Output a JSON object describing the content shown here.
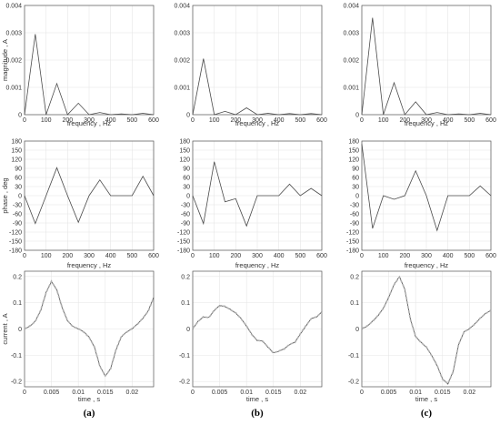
{
  "panel_labels": [
    "(a)",
    "(b)",
    "(c)"
  ],
  "chart_data": [
    {
      "type": "line",
      "panel": "(a)",
      "row": "magnitude",
      "xlabel": "frequency , Hz",
      "ylabel": "magnitude , A",
      "xlim": [
        0,
        600
      ],
      "ylim": [
        0,
        0.004
      ],
      "xticks": [
        0,
        100,
        200,
        300,
        400,
        500,
        600
      ],
      "yticks": [
        0,
        0.001,
        0.002,
        0.003,
        0.004
      ],
      "ytick_labels": [
        "0",
        "0.001",
        "0.002",
        "0.003",
        "0.004"
      ],
      "grid": true,
      "x": [
        0,
        50,
        100,
        150,
        200,
        250,
        300,
        350,
        400,
        450,
        500,
        550,
        600
      ],
      "series": [
        {
          "values": [
            0.0,
            0.00295,
            0.0,
            0.00114,
            0.0,
            0.00042,
            0.0,
            8e-05,
            0.0,
            3e-05,
            0.0,
            5e-05,
            0.0
          ]
        }
      ]
    },
    {
      "type": "line",
      "panel": "(b)",
      "row": "magnitude",
      "xlabel": "frequency , Hz",
      "ylabel": "",
      "xlim": [
        0,
        600
      ],
      "ylim": [
        0,
        0.004
      ],
      "xticks": [
        0,
        100,
        200,
        300,
        400,
        500,
        600
      ],
      "yticks": [
        0,
        0.001,
        0.002,
        0.003,
        0.004
      ],
      "ytick_labels": [
        "0",
        "0.001",
        "0.002",
        "0.003",
        "0.004"
      ],
      "grid": true,
      "x": [
        0,
        50,
        100,
        150,
        200,
        250,
        300,
        350,
        400,
        450,
        500,
        550,
        600
      ],
      "series": [
        {
          "values": [
            0.0,
            0.00205,
            0.0,
            0.00012,
            0.0,
            0.00025,
            0.0,
            5e-05,
            0.0,
            4e-05,
            0.0,
            4e-05,
            0.0
          ]
        }
      ]
    },
    {
      "type": "line",
      "panel": "(c)",
      "row": "magnitude",
      "xlabel": "frequency , Hz",
      "ylabel": "",
      "xlim": [
        0,
        600
      ],
      "ylim": [
        0,
        0.004
      ],
      "xticks": [
        0,
        100,
        200,
        300,
        400,
        500,
        600
      ],
      "yticks": [
        0,
        0.001,
        0.002,
        0.003,
        0.004
      ],
      "ytick_labels": [
        "0",
        "0.001",
        "0.002",
        "0.003",
        "0.004"
      ],
      "grid": true,
      "x": [
        0,
        50,
        100,
        150,
        200,
        250,
        300,
        350,
        400,
        450,
        500,
        550,
        600
      ],
      "series": [
        {
          "values": [
            0.0,
            0.00355,
            0.0,
            0.00117,
            0.0,
            0.00047,
            0.0,
            8e-05,
            0.0,
            3e-05,
            0.0,
            5e-05,
            0.0
          ]
        }
      ]
    },
    {
      "type": "line",
      "panel": "(a)",
      "row": "phase",
      "xlabel": "frequency , Hz",
      "ylabel": "phase , deg",
      "xlim": [
        0,
        600
      ],
      "ylim": [
        -180,
        180
      ],
      "xticks": [
        0,
        100,
        200,
        300,
        400,
        500,
        600
      ],
      "yticks": [
        -180,
        -150,
        -120,
        -90,
        -60,
        -30,
        0,
        30,
        60,
        90,
        120,
        150,
        180
      ],
      "ytick_labels": [
        "-180",
        "-150",
        "-120",
        "-90",
        "-60",
        "-30",
        "0",
        "30",
        "60",
        "90",
        "120",
        "150",
        "180"
      ],
      "grid": true,
      "x": [
        0,
        50,
        100,
        150,
        200,
        250,
        300,
        350,
        400,
        450,
        500,
        550,
        600
      ],
      "series": [
        {
          "values": [
            0,
            -92,
            0,
            92,
            0,
            -88,
            0,
            52,
            0,
            0,
            0,
            64,
            0
          ]
        }
      ]
    },
    {
      "type": "line",
      "panel": "(b)",
      "row": "phase",
      "xlabel": "frequency , Hz",
      "ylabel": "",
      "xlim": [
        0,
        600
      ],
      "ylim": [
        -180,
        180
      ],
      "xticks": [
        0,
        100,
        200,
        300,
        400,
        500,
        600
      ],
      "yticks": [
        -180,
        -150,
        -120,
        -90,
        -60,
        -30,
        0,
        30,
        60,
        90,
        120,
        150,
        180
      ],
      "ytick_labels": [
        "-180",
        "-150",
        "-120",
        "-90",
        "-60",
        "-30",
        "0",
        "30",
        "60",
        "90",
        "120",
        "150",
        "180"
      ],
      "grid": true,
      "x": [
        0,
        50,
        100,
        150,
        200,
        250,
        300,
        350,
        400,
        450,
        500,
        550,
        600
      ],
      "series": [
        {
          "values": [
            0,
            -92,
            112,
            -20,
            -10,
            -100,
            0,
            0,
            0,
            38,
            0,
            24,
            0
          ]
        }
      ]
    },
    {
      "type": "line",
      "panel": "(c)",
      "row": "phase",
      "xlabel": "frequency , Hz",
      "ylabel": "",
      "xlim": [
        0,
        600
      ],
      "ylim": [
        -180,
        180
      ],
      "xticks": [
        0,
        100,
        200,
        300,
        400,
        500,
        600
      ],
      "yticks": [
        -180,
        -150,
        -120,
        -90,
        -60,
        -30,
        0,
        30,
        60,
        90,
        120,
        150,
        180
      ],
      "ytick_labels": [
        "-180",
        "-150",
        "-120",
        "-90",
        "-60",
        "-30",
        "0",
        "30",
        "60",
        "90",
        "120",
        "150",
        "180"
      ],
      "grid": true,
      "x": [
        0,
        50,
        100,
        150,
        200,
        250,
        300,
        350,
        400,
        450,
        500,
        550,
        600
      ],
      "series": [
        {
          "values": [
            170,
            -108,
            0,
            -12,
            0,
            82,
            0,
            -115,
            0,
            0,
            0,
            32,
            0
          ]
        }
      ]
    },
    {
      "type": "line",
      "panel": "(a)",
      "row": "current",
      "xlabel": "time , s",
      "ylabel": "current , A",
      "xlim": [
        0,
        0.024
      ],
      "ylim": [
        -0.22,
        0.22
      ],
      "xticks": [
        0,
        0.005,
        0.01,
        0.015,
        0.02
      ],
      "xtick_labels": [
        "0",
        "0.005",
        "0.01",
        "0.015",
        "0.02"
      ],
      "yticks": [
        -0.2,
        -0.1,
        0,
        0.1,
        0.2
      ],
      "ytick_labels": [
        "-0.2",
        "-0.1",
        "0",
        "0.1",
        "0.2"
      ],
      "grid": true,
      "x": [
        0,
        0.001,
        0.002,
        0.003,
        0.004,
        0.005,
        0.006,
        0.007,
        0.008,
        0.009,
        0.01,
        0.011,
        0.012,
        0.013,
        0.014,
        0.015,
        0.016,
        0.017,
        0.018,
        0.019,
        0.02,
        0.021,
        0.022,
        0.023,
        0.024
      ],
      "series": [
        {
          "style": "solid",
          "values": [
            0,
            0.01,
            0.03,
            0.07,
            0.14,
            0.18,
            0.15,
            0.08,
            0.03,
            0.01,
            0,
            -0.01,
            -0.03,
            -0.07,
            -0.14,
            -0.18,
            -0.15,
            -0.08,
            -0.03,
            -0.01,
            0,
            0.02,
            0.04,
            0.07,
            0.12
          ]
        },
        {
          "style": "dashed",
          "values": [
            0,
            0.012,
            0.028,
            0.072,
            0.138,
            0.182,
            0.148,
            0.082,
            0.032,
            0.008,
            0.002,
            -0.012,
            -0.032,
            -0.068,
            -0.142,
            -0.178,
            -0.152,
            -0.078,
            -0.028,
            -0.012,
            0.002,
            0.018,
            0.042,
            0.068,
            0.118
          ]
        }
      ]
    },
    {
      "type": "line",
      "panel": "(b)",
      "row": "current",
      "xlabel": "time , s",
      "ylabel": "",
      "xlim": [
        0,
        0.024
      ],
      "ylim": [
        -0.22,
        0.22
      ],
      "xticks": [
        0,
        0.005,
        0.01,
        0.015,
        0.02
      ],
      "xtick_labels": [
        "0",
        "0.005",
        "0.01",
        "0.015",
        "0.02"
      ],
      "yticks": [
        -0.2,
        -0.1,
        0,
        0.1,
        0.2
      ],
      "ytick_labels": [
        "-0.2",
        "-0.1",
        "0",
        "0.1",
        "0.2"
      ],
      "grid": true,
      "x": [
        0,
        0.001,
        0.002,
        0.003,
        0.004,
        0.005,
        0.006,
        0.007,
        0.008,
        0.009,
        0.01,
        0.011,
        0.012,
        0.013,
        0.014,
        0.015,
        0.016,
        0.017,
        0.018,
        0.019,
        0.02,
        0.021,
        0.022,
        0.023,
        0.024
      ],
      "series": [
        {
          "style": "solid",
          "values": [
            0,
            0.03,
            0.045,
            0.045,
            0.07,
            0.09,
            0.085,
            0.075,
            0.06,
            0.04,
            0.01,
            -0.02,
            -0.045,
            -0.045,
            -0.07,
            -0.09,
            -0.085,
            -0.075,
            -0.06,
            -0.05,
            -0.02,
            0.01,
            0.04,
            0.045,
            0.065
          ]
        },
        {
          "style": "dashed",
          "values": [
            0.002,
            0.028,
            0.047,
            0.043,
            0.072,
            0.088,
            0.087,
            0.073,
            0.062,
            0.038,
            0.012,
            -0.022,
            -0.043,
            -0.047,
            -0.068,
            -0.092,
            -0.083,
            -0.077,
            -0.058,
            -0.052,
            -0.018,
            0.012,
            0.038,
            0.047,
            0.063
          ]
        }
      ]
    },
    {
      "type": "line",
      "panel": "(c)",
      "row": "current",
      "xlabel": "time , s",
      "ylabel": "",
      "xlim": [
        0,
        0.024
      ],
      "ylim": [
        -0.22,
        0.22
      ],
      "xticks": [
        0,
        0.005,
        0.01,
        0.015,
        0.02
      ],
      "xtick_labels": [
        "0",
        "0.005",
        "0.01",
        "0.015",
        "0.02"
      ],
      "yticks": [
        -0.2,
        -0.1,
        0,
        0.1,
        0.2
      ],
      "ytick_labels": [
        "-0.2",
        "-0.1",
        "0",
        "0.1",
        "0.2"
      ],
      "grid": true,
      "x": [
        0,
        0.001,
        0.002,
        0.003,
        0.004,
        0.005,
        0.006,
        0.007,
        0.008,
        0.009,
        0.01,
        0.011,
        0.012,
        0.013,
        0.014,
        0.015,
        0.016,
        0.017,
        0.018,
        0.019,
        0.02,
        0.021,
        0.022,
        0.023,
        0.024
      ],
      "series": [
        {
          "style": "solid",
          "values": [
            0,
            0.01,
            0.03,
            0.05,
            0.08,
            0.12,
            0.17,
            0.2,
            0.15,
            0.04,
            -0.03,
            -0.05,
            -0.07,
            -0.1,
            -0.14,
            -0.19,
            -0.21,
            -0.16,
            -0.06,
            -0.01,
            0,
            0.02,
            0.04,
            0.06,
            0.07
          ]
        },
        {
          "style": "dashed",
          "values": [
            0.002,
            0.012,
            0.028,
            0.052,
            0.078,
            0.122,
            0.168,
            0.198,
            0.152,
            0.038,
            -0.028,
            -0.052,
            -0.068,
            -0.102,
            -0.138,
            -0.192,
            -0.208,
            -0.162,
            -0.058,
            -0.012,
            0.002,
            0.018,
            0.042,
            0.058,
            0.072
          ]
        }
      ]
    }
  ]
}
